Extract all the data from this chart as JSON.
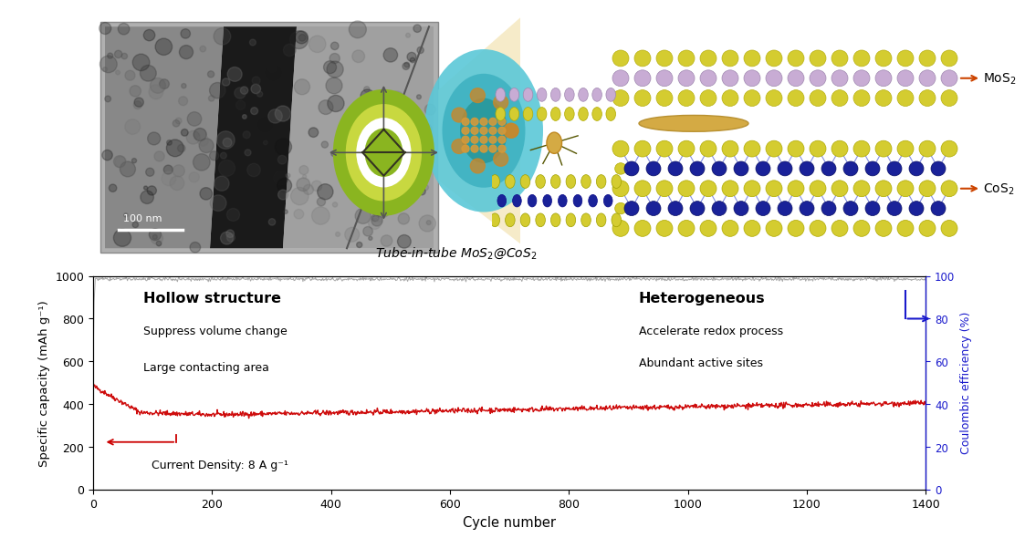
{
  "xlabel": "Cycle number",
  "ylabel_left": "Specific capacity (mAh g⁻¹)",
  "ylabel_right": "Coulombic efficiency (%)",
  "xlim": [
    0,
    1400
  ],
  "ylim_left": [
    0,
    1000
  ],
  "ylim_right": [
    0,
    100
  ],
  "xticks": [
    0,
    200,
    400,
    600,
    800,
    1000,
    1200,
    1400
  ],
  "yticks_left": [
    0,
    200,
    400,
    600,
    800,
    1000
  ],
  "yticks_right": [
    0,
    20,
    40,
    60,
    80,
    100
  ],
  "capacity_color": "#cc0000",
  "coulombic_color": "#909090",
  "annotation_text": "Current Density: 8 A g⁻¹",
  "hollow_structure_text": "Hollow structure",
  "suppress_text": "Suppress volume change",
  "large_text": "Large contacting area",
  "heterogeneous_text": "Heterogeneous",
  "accelerate_text": "Accelerate redox process",
  "abundant_text": "Abundant active sites",
  "bg_color": "#ffffff",
  "tube_label": "Tube-in-tube MoS₂@CoS₂",
  "mos2_label": "MoS₂",
  "cos2_label": "CoS₂",
  "mo_color": "#c8acd4",
  "s_color": "#d4cc30",
  "co_color": "#1a2299",
  "s_cos2_color": "#d4cc30",
  "gold_color": "#d4aa44",
  "green_outer": "#8ab520",
  "green_inner": "#c8d840",
  "white_ring": "#ffffff",
  "arrow_gray": "#555555"
}
